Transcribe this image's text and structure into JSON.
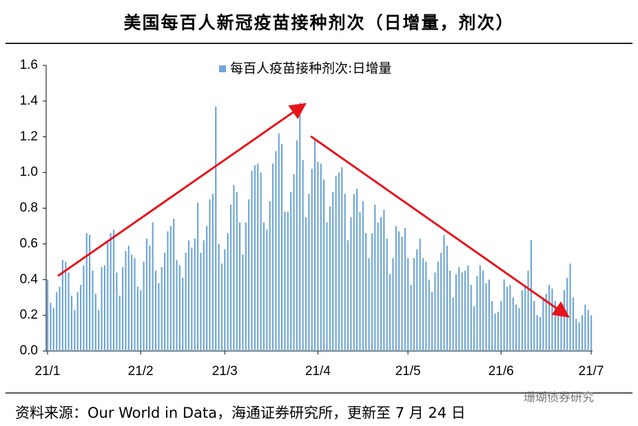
{
  "chart_data": {
    "type": "bar",
    "title": "美国每百人新冠疫苗接种剂次（日增量，剂次）",
    "source": "资料来源：Our World in Data，海通证券研究所，更新至 7 月 24 日",
    "watermark": "珊瑚债券研究",
    "categories": [
      "21/1",
      null,
      null,
      null,
      null,
      null,
      null,
      null,
      null,
      null,
      null,
      null,
      null,
      null,
      null,
      null,
      null,
      null,
      null,
      null,
      null,
      null,
      null,
      null,
      null,
      null,
      null,
      null,
      null,
      null,
      null,
      "21/2",
      null,
      null,
      null,
      null,
      null,
      null,
      null,
      null,
      null,
      null,
      null,
      null,
      null,
      null,
      null,
      null,
      null,
      null,
      null,
      null,
      null,
      null,
      null,
      null,
      null,
      null,
      null,
      "21/3",
      null,
      null,
      null,
      null,
      null,
      null,
      null,
      null,
      null,
      null,
      null,
      null,
      null,
      null,
      null,
      null,
      null,
      null,
      null,
      null,
      null,
      null,
      null,
      null,
      null,
      null,
      null,
      null,
      null,
      null,
      "21/4",
      null,
      null,
      null,
      null,
      null,
      null,
      null,
      null,
      null,
      null,
      null,
      null,
      null,
      null,
      null,
      null,
      null,
      null,
      null,
      null,
      null,
      null,
      null,
      null,
      null,
      null,
      null,
      null,
      null,
      "21/5",
      null,
      null,
      null,
      null,
      null,
      null,
      null,
      null,
      null,
      null,
      null,
      null,
      null,
      null,
      null,
      null,
      null,
      null,
      null,
      null,
      null,
      null,
      null,
      null,
      null,
      null,
      null,
      null,
      null,
      null,
      "21/6",
      null,
      null,
      null,
      null,
      null,
      null,
      null,
      null,
      null,
      null,
      null,
      null,
      null,
      null,
      null,
      null,
      null,
      null,
      null,
      null,
      null,
      null,
      null,
      null,
      null,
      null,
      null,
      null,
      null,
      "21/7"
    ],
    "series": [
      {
        "name": "每百人疫苗接种剂次:日增量",
        "color": "#6fa6d9",
        "values": [
          0.4,
          0.27,
          0.24,
          0.33,
          0.36,
          0.51,
          0.5,
          0.44,
          0.31,
          0.23,
          0.33,
          0.37,
          0.48,
          0.66,
          0.65,
          0.45,
          0.32,
          0.23,
          0.47,
          0.48,
          0.61,
          0.66,
          0.68,
          0.44,
          0.31,
          0.47,
          0.56,
          0.59,
          0.54,
          0.52,
          0.36,
          0.34,
          0.5,
          0.63,
          0.59,
          0.72,
          0.45,
          0.38,
          0.47,
          0.55,
          0.67,
          0.7,
          0.74,
          0.51,
          0.48,
          0.41,
          0.55,
          0.62,
          0.58,
          0.63,
          0.83,
          0.55,
          0.62,
          0.7,
          0.85,
          0.88,
          1.37,
          0.6,
          0.49,
          0.57,
          0.66,
          0.82,
          0.93,
          0.89,
          0.72,
          0.54,
          0.72,
          0.85,
          1.01,
          1.04,
          1.05,
          1.0,
          0.72,
          0.68,
          0.84,
          1.05,
          1.12,
          1.22,
          1.16,
          0.78,
          0.78,
          0.89,
          0.99,
          1.18,
          1.39,
          1.07,
          0.75,
          0.88,
          1.02,
          1.18,
          1.06,
          1.05,
          0.96,
          0.72,
          0.81,
          0.89,
          0.98,
          1.0,
          1.03,
          0.88,
          0.62,
          0.75,
          0.88,
          0.91,
          0.78,
          0.84,
          0.66,
          0.52,
          0.66,
          0.82,
          0.72,
          0.75,
          0.79,
          0.63,
          0.43,
          0.52,
          0.7,
          0.67,
          0.64,
          0.69,
          0.52,
          0.37,
          0.52,
          0.57,
          0.63,
          0.52,
          0.5,
          0.4,
          0.33,
          0.44,
          0.5,
          0.55,
          0.65,
          0.59,
          0.45,
          0.3,
          0.43,
          0.47,
          0.44,
          0.45,
          0.48,
          0.37,
          0.25,
          0.42,
          0.48,
          0.45,
          0.38,
          0.4,
          0.28,
          0.21,
          0.22,
          0.28,
          0.4,
          0.36,
          0.37,
          0.3,
          0.26,
          0.24,
          0.34,
          0.37,
          0.45,
          0.62,
          0.28,
          0.2,
          0.19,
          0.3,
          0.32,
          0.37,
          0.35,
          0.28,
          0.21,
          0.23,
          0.34,
          0.41,
          0.49,
          0.3,
          0.18,
          0.16,
          0.2,
          0.26,
          0.23,
          0.2
        ]
      }
    ],
    "ylim": [
      0,
      1.6
    ],
    "yticks": [
      {
        "value": 0,
        "label": "0.0"
      },
      {
        "value": 0.2,
        "label": "0.2"
      },
      {
        "value": 0.4,
        "label": "0.4"
      },
      {
        "value": 0.6,
        "label": "0.6"
      },
      {
        "value": 0.8,
        "label": "0.8"
      },
      {
        "value": 1.0,
        "label": "1.0"
      },
      {
        "value": 1.2,
        "label": "1.2"
      },
      {
        "value": 1.4,
        "label": "1.4"
      },
      {
        "value": 1.6,
        "label": "1.6"
      }
    ],
    "legend": "top"
  }
}
